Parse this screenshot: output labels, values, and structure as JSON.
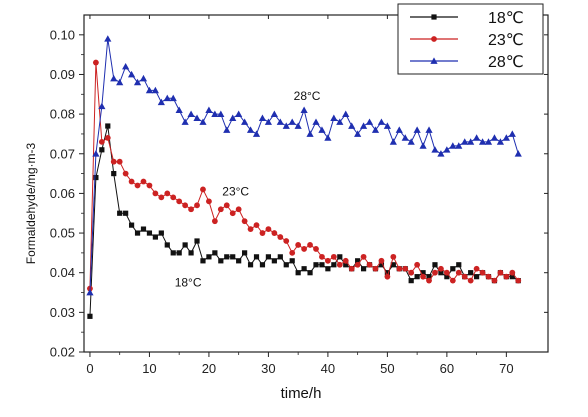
{
  "chart_data": {
    "type": "line",
    "xlabel": "time/h",
    "ylabel": "Formaldehyde/mg·m-3",
    "xlim": [
      -1,
      77
    ],
    "ylim": [
      0.02,
      0.105
    ],
    "xticks": [
      0,
      10,
      20,
      30,
      40,
      50,
      60,
      70
    ],
    "yticks": [
      0.02,
      0.03,
      0.04,
      0.05,
      0.06,
      0.07,
      0.08,
      0.09,
      0.1
    ],
    "ytick_labels": [
      "0.02",
      "0.03",
      "0.04",
      "0.05",
      "0.06",
      "0.07",
      "0.08",
      "0.09",
      "0.10"
    ],
    "grid": false,
    "legend_position": "top-right",
    "series": [
      {
        "name": "18℃",
        "annotation": "18°C",
        "color": "#111111",
        "marker": "square",
        "x": [
          0,
          1,
          2,
          3,
          4,
          5,
          6,
          7,
          8,
          9,
          10,
          11,
          12,
          13,
          14,
          15,
          16,
          17,
          18,
          19,
          20,
          21,
          22,
          23,
          24,
          25,
          26,
          27,
          28,
          29,
          30,
          31,
          32,
          33,
          34,
          35,
          36,
          37,
          38,
          39,
          40,
          41,
          42,
          43,
          44,
          45,
          46,
          47,
          48,
          49,
          50,
          51,
          52,
          53,
          54,
          55,
          56,
          57,
          58,
          59,
          60,
          61,
          62,
          63,
          64,
          65,
          66,
          67,
          68,
          69,
          70,
          71,
          72
        ],
        "values": [
          0.029,
          0.064,
          0.071,
          0.077,
          0.065,
          0.055,
          0.055,
          0.052,
          0.05,
          0.051,
          0.05,
          0.049,
          0.05,
          0.047,
          0.045,
          0.045,
          0.047,
          0.045,
          0.048,
          0.043,
          0.044,
          0.045,
          0.043,
          0.044,
          0.044,
          0.043,
          0.045,
          0.042,
          0.044,
          0.042,
          0.044,
          0.043,
          0.044,
          0.042,
          0.043,
          0.04,
          0.041,
          0.04,
          0.042,
          0.042,
          0.041,
          0.042,
          0.044,
          0.042,
          0.041,
          0.043,
          0.041,
          0.042,
          0.041,
          0.042,
          0.04,
          0.042,
          0.041,
          0.041,
          0.038,
          0.039,
          0.04,
          0.039,
          0.042,
          0.04,
          0.039,
          0.041,
          0.042,
          0.039,
          0.04,
          0.039,
          0.04,
          0.039,
          0.038,
          0.04,
          0.039,
          0.039,
          0.038
        ]
      },
      {
        "name": "23℃",
        "annotation": "23°C",
        "color": "#cc2222",
        "marker": "circle",
        "x": [
          0,
          1,
          2,
          3,
          4,
          5,
          6,
          7,
          8,
          9,
          10,
          11,
          12,
          13,
          14,
          15,
          16,
          17,
          18,
          19,
          20,
          21,
          22,
          23,
          24,
          25,
          26,
          27,
          28,
          29,
          30,
          31,
          32,
          33,
          34,
          35,
          36,
          37,
          38,
          39,
          40,
          41,
          42,
          43,
          44,
          45,
          46,
          47,
          48,
          49,
          50,
          51,
          52,
          53,
          54,
          55,
          56,
          57,
          58,
          59,
          60,
          61,
          62,
          63,
          64,
          65,
          66,
          67,
          68,
          69,
          70,
          71,
          72
        ],
        "values": [
          0.036,
          0.093,
          0.073,
          0.074,
          0.068,
          0.068,
          0.065,
          0.063,
          0.062,
          0.063,
          0.062,
          0.06,
          0.059,
          0.06,
          0.059,
          0.058,
          0.057,
          0.056,
          0.057,
          0.061,
          0.058,
          0.053,
          0.056,
          0.057,
          0.055,
          0.056,
          0.053,
          0.051,
          0.052,
          0.05,
          0.051,
          0.05,
          0.049,
          0.048,
          0.045,
          0.047,
          0.046,
          0.047,
          0.046,
          0.044,
          0.043,
          0.044,
          0.042,
          0.043,
          0.041,
          0.042,
          0.044,
          0.042,
          0.041,
          0.043,
          0.039,
          0.044,
          0.041,
          0.041,
          0.04,
          0.042,
          0.039,
          0.038,
          0.04,
          0.041,
          0.04,
          0.038,
          0.04,
          0.039,
          0.038,
          0.041,
          0.04,
          0.039,
          0.038,
          0.04,
          0.039,
          0.04,
          0.038
        ]
      },
      {
        "name": "28℃",
        "annotation": "28°C",
        "color": "#1f2fb0",
        "marker": "triangle",
        "x": [
          0,
          1,
          2,
          3,
          4,
          5,
          6,
          7,
          8,
          9,
          10,
          11,
          12,
          13,
          14,
          15,
          16,
          17,
          18,
          19,
          20,
          21,
          22,
          23,
          24,
          25,
          26,
          27,
          28,
          29,
          30,
          31,
          32,
          33,
          34,
          35,
          36,
          37,
          38,
          39,
          40,
          41,
          42,
          43,
          44,
          45,
          46,
          47,
          48,
          49,
          50,
          51,
          52,
          53,
          54,
          55,
          56,
          57,
          58,
          59,
          60,
          61,
          62,
          63,
          64,
          65,
          66,
          67,
          68,
          69,
          70,
          71,
          72
        ],
        "values": [
          0.035,
          0.07,
          0.082,
          0.099,
          0.089,
          0.088,
          0.092,
          0.09,
          0.088,
          0.089,
          0.086,
          0.086,
          0.083,
          0.084,
          0.084,
          0.081,
          0.078,
          0.08,
          0.079,
          0.078,
          0.081,
          0.08,
          0.08,
          0.076,
          0.079,
          0.08,
          0.078,
          0.076,
          0.075,
          0.079,
          0.078,
          0.08,
          0.078,
          0.077,
          0.078,
          0.077,
          0.081,
          0.075,
          0.078,
          0.076,
          0.074,
          0.079,
          0.078,
          0.08,
          0.077,
          0.075,
          0.077,
          0.078,
          0.076,
          0.078,
          0.077,
          0.073,
          0.076,
          0.074,
          0.073,
          0.076,
          0.072,
          0.076,
          0.071,
          0.07,
          0.071,
          0.072,
          0.072,
          0.073,
          0.073,
          0.074,
          0.073,
          0.073,
          0.074,
          0.073,
          0.074,
          0.075,
          0.07
        ]
      }
    ]
  }
}
